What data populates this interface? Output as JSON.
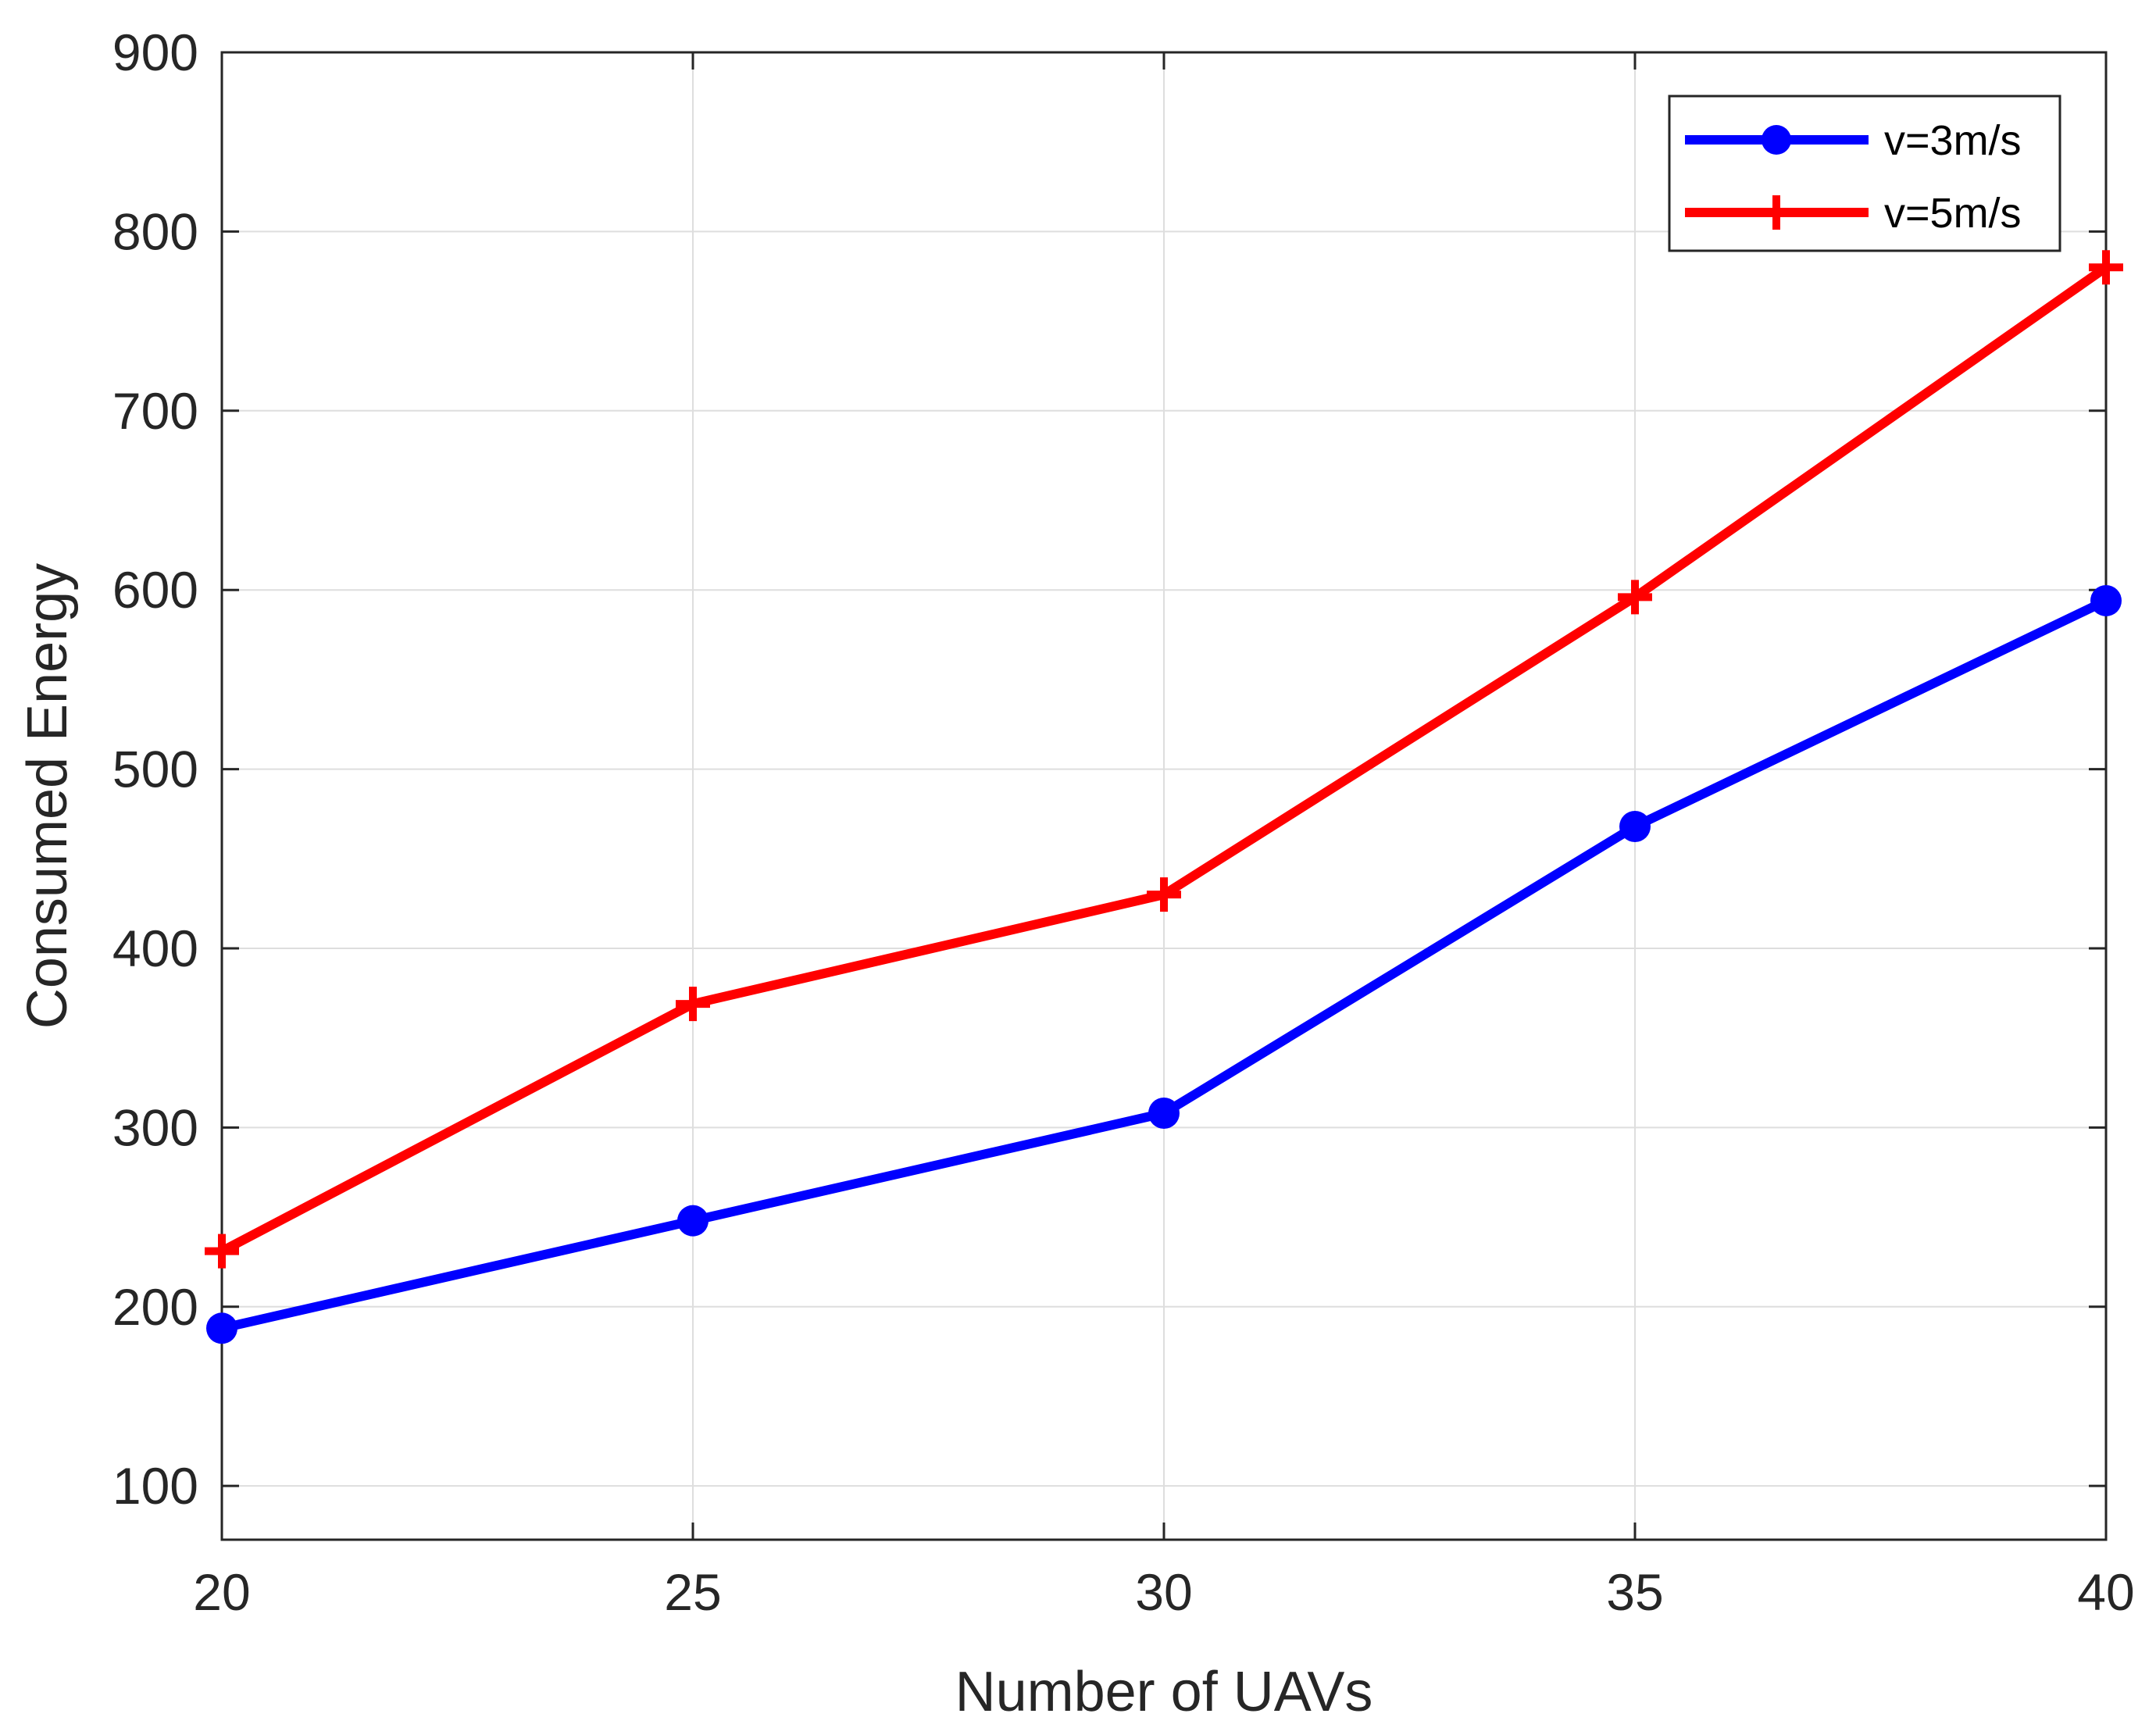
{
  "chart_data": {
    "type": "line",
    "title": "",
    "xlabel": "Number of UAVs",
    "ylabel": "Consumed Energy",
    "x": [
      20,
      25,
      30,
      35,
      40
    ],
    "xlim": [
      20,
      40
    ],
    "ylim": [
      70,
      900
    ],
    "xticks": [
      20,
      25,
      30,
      35,
      40
    ],
    "yticks": [
      100,
      200,
      300,
      400,
      500,
      600,
      700,
      800,
      900
    ],
    "xtick_labels": [
      "20",
      "25",
      "30",
      "35",
      "40"
    ],
    "ytick_labels": [
      "100",
      "200",
      "300",
      "400",
      "500",
      "600",
      "700",
      "800",
      "900"
    ],
    "grid": true,
    "legend_position": "top-right",
    "series": [
      {
        "name": "v=3m/s",
        "values": [
          188,
          248,
          308,
          468,
          594
        ],
        "color": "#0000ff",
        "marker": "circle"
      },
      {
        "name": "v=5m/s",
        "values": [
          231,
          369,
          430,
          596,
          780
        ],
        "color": "#ff0000",
        "marker": "plus"
      }
    ]
  }
}
